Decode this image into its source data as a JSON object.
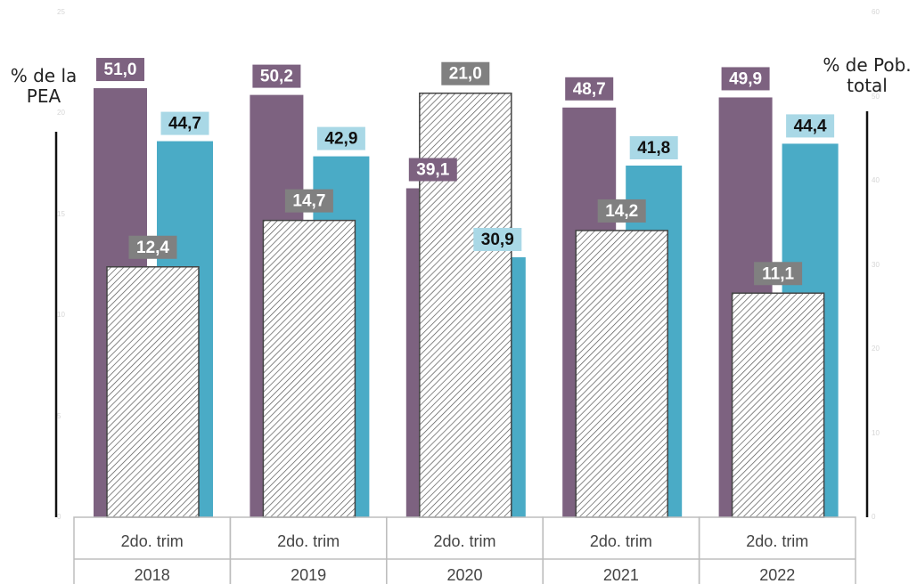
{
  "chart_data": {
    "type": "bar",
    "categories": [
      {
        "period": "2do. trim",
        "year": "2018"
      },
      {
        "period": "2do. trim",
        "year": "2019"
      },
      {
        "period": "2do. trim",
        "year": "2020"
      },
      {
        "period": "2do. trim",
        "year": "2021"
      },
      {
        "period": "2do. trim",
        "year": "2022"
      }
    ],
    "series": [
      {
        "axis": "right",
        "color": "#7d6280",
        "label_color": "#7d6280",
        "values": [
          51.0,
          50.2,
          39.1,
          48.7,
          49.9
        ],
        "labels": [
          "51,0",
          "50,2",
          "39,1",
          "48,7",
          "49,9"
        ]
      },
      {
        "axis": "right",
        "color": "#4aabc6",
        "label_color": "#a9d8e6",
        "values": [
          44.7,
          42.9,
          30.9,
          41.8,
          44.4
        ],
        "labels": [
          "44,7",
          "42,9",
          "30,9",
          "41,8",
          "44,4"
        ]
      },
      {
        "axis": "left",
        "color": "#ffffff",
        "pattern": "diagonal-hatch",
        "label_color": "#808080",
        "values": [
          12.4,
          14.7,
          21.0,
          14.2,
          11.1
        ],
        "labels": [
          "12,4",
          "14,7",
          "21,0",
          "14,2",
          "11,1"
        ]
      }
    ],
    "left_axis": {
      "title": "% de la PEA",
      "title_lines": [
        "% de la",
        "PEA"
      ],
      "range": [
        0,
        25
      ],
      "tick_labels": [
        "0",
        "5",
        "10",
        "15",
        "20",
        "25"
      ]
    },
    "right_axis": {
      "title": "% de Pob. total",
      "title_lines": [
        "% de Pob.",
        "total"
      ],
      "range": [
        0,
        60
      ],
      "tick_labels": [
        "0",
        "10",
        "20",
        "30",
        "40",
        "50",
        "60"
      ]
    },
    "grid": false,
    "legend": "none"
  }
}
